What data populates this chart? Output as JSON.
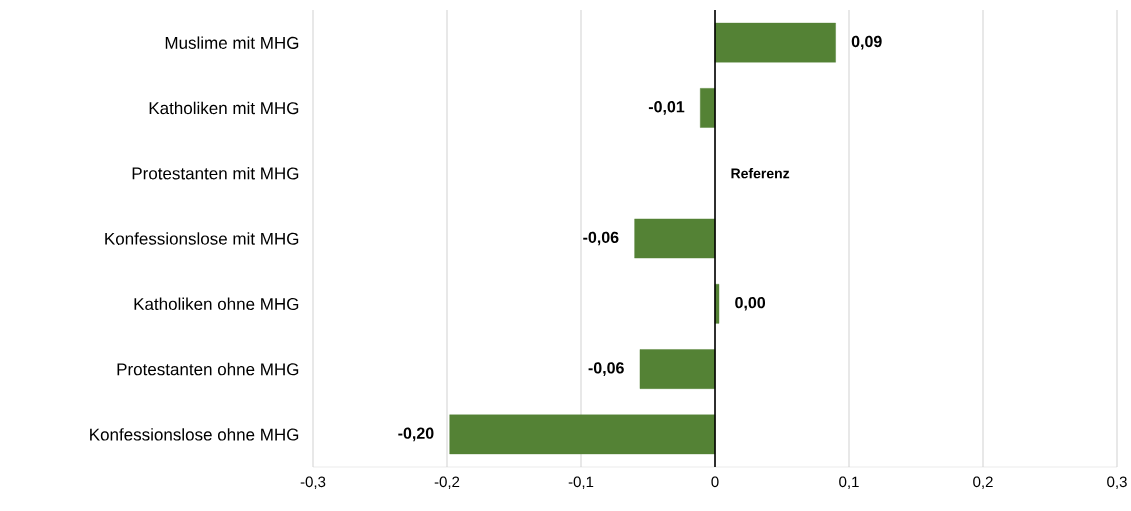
{
  "chart_data": {
    "type": "bar",
    "orientation": "horizontal",
    "categories": [
      "Muslime mit MHG",
      "Katholiken mit MHG",
      "Protestanten mit MHG",
      "Konfessionslose mit MHG",
      "Katholiken ohne MHG",
      "Protestanten ohne MHG",
      "Konfessionslose ohne MHG"
    ],
    "values": [
      0.09,
      -0.011,
      null,
      -0.06,
      0.003,
      -0.056,
      -0.198
    ],
    "value_labels": [
      "0,09",
      "-0,01",
      null,
      "-0,06",
      "0,00",
      "-0,06",
      "-0,20"
    ],
    "colors": [
      "#548235",
      "#548235",
      "#548235",
      "#548235",
      "#548235",
      "#548235",
      "#548235"
    ],
    "xlim": [
      -0.3,
      0.3
    ],
    "xticks": [
      {
        "value": -0.3,
        "label": "-0,3"
      },
      {
        "value": -0.2,
        "label": "-0,2"
      },
      {
        "value": -0.1,
        "label": "-0,1"
      },
      0,
      {
        "value": 0.1,
        "label": "0,1"
      },
      {
        "value": 0.2,
        "label": "0,2"
      },
      {
        "value": 0.3,
        "label": "0,3"
      }
    ],
    "grid": "x",
    "ref_lines": [
      {
        "axis": "x",
        "value": 0,
        "color": "#000000"
      }
    ],
    "annotations": [
      {
        "text": "Referenz",
        "x": 0,
        "y": "Protestanten mit MHG"
      }
    ]
  }
}
